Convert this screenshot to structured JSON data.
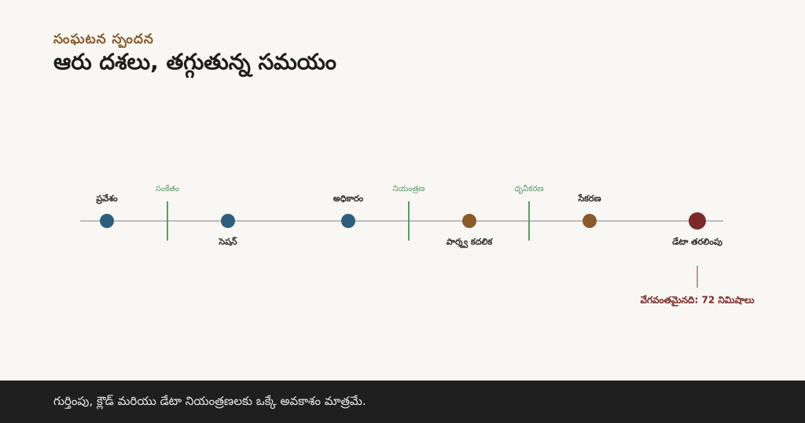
{
  "header": {
    "subtitle": "సంఘటన స్పందన",
    "title": "ఆరు దశలు, తగ్గుతున్న సమయం"
  },
  "stages": [
    {
      "label": "ప్రవేశం",
      "color": "#2f5d7e"
    },
    {
      "label": "సెషన్",
      "color": "#2f5d7e"
    },
    {
      "label": "అధికారం",
      "color": "#2f5d7e"
    },
    {
      "label": "పార్శ్వ కదలిక",
      "color": "#8a5a2b"
    },
    {
      "label": "సేకరణ",
      "color": "#8a5a2b"
    },
    {
      "label": "డేటా తరలింపు",
      "color": "#7a2a2a"
    }
  ],
  "checkpoints": [
    {
      "label": "సంకేతం"
    },
    {
      "label": "నియంత్రణ"
    },
    {
      "label": "ధృవీకరణ"
    }
  ],
  "annotation": "వేగవంతమైనది: 72 నిమిషాలు",
  "footer": "గుర్తింపు, క్లౌడ్ మరియు డేటా నియంత్రణలకు ఒక్కే అవకాశం మాత్రమే."
}
